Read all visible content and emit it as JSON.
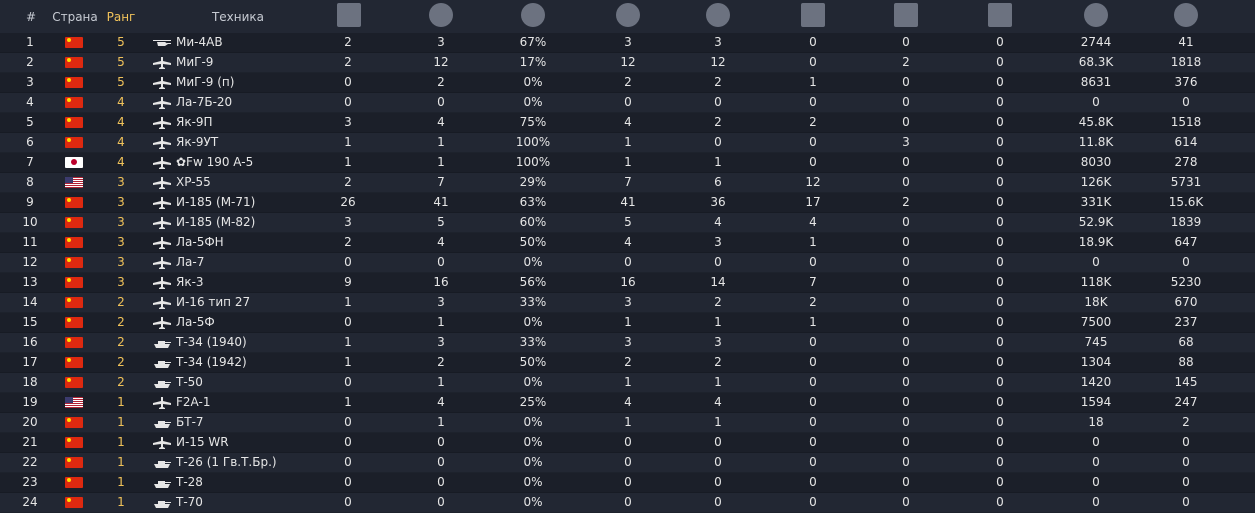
{
  "header": {
    "num": "#",
    "country": "Страна",
    "rank": "Ранг",
    "vehicle": "Техника",
    "icons": [
      "battles-icon",
      "air-kills-icon",
      "win-rate-icon",
      "flag-icon",
      "ground-kills-icon",
      "stars-icon",
      "naval-icon",
      "anchors-icon",
      "silver-lions-icon",
      "research-points-icon"
    ]
  },
  "rows": [
    {
      "num": "1",
      "flag": "china",
      "rank": "5",
      "type": "heli",
      "name": "Ми-4АВ",
      "c1": "2",
      "c2": "3",
      "c3": "67%",
      "c4": "3",
      "c5": "3",
      "c6": "0",
      "c7": "0",
      "c8": "0",
      "c9": "2744",
      "c10": "41"
    },
    {
      "num": "2",
      "flag": "china",
      "rank": "5",
      "type": "plane",
      "name": "МиГ-9",
      "c1": "2",
      "c2": "12",
      "c3": "17%",
      "c4": "12",
      "c5": "12",
      "c6": "0",
      "c7": "2",
      "c8": "0",
      "c9": "68.3K",
      "c10": "1818"
    },
    {
      "num": "3",
      "flag": "china",
      "rank": "5",
      "type": "plane",
      "name": "МиГ-9 (п)",
      "c1": "0",
      "c2": "2",
      "c3": "0%",
      "c4": "2",
      "c5": "2",
      "c6": "1",
      "c7": "0",
      "c8": "0",
      "c9": "8631",
      "c10": "376"
    },
    {
      "num": "4",
      "flag": "china",
      "rank": "4",
      "type": "plane",
      "name": "Ла-7Б-20",
      "c1": "0",
      "c2": "0",
      "c3": "0%",
      "c4": "0",
      "c5": "0",
      "c6": "0",
      "c7": "0",
      "c8": "0",
      "c9": "0",
      "c10": "0"
    },
    {
      "num": "5",
      "flag": "china",
      "rank": "4",
      "type": "plane",
      "name": "Як-9П",
      "c1": "3",
      "c2": "4",
      "c3": "75%",
      "c4": "4",
      "c5": "2",
      "c6": "2",
      "c7": "0",
      "c8": "0",
      "c9": "45.8K",
      "c10": "1518"
    },
    {
      "num": "6",
      "flag": "china",
      "rank": "4",
      "type": "plane",
      "name": "Як-9УТ",
      "c1": "1",
      "c2": "1",
      "c3": "100%",
      "c4": "1",
      "c5": "0",
      "c6": "0",
      "c7": "3",
      "c8": "0",
      "c9": "11.8K",
      "c10": "614"
    },
    {
      "num": "7",
      "flag": "japan",
      "rank": "4",
      "type": "plane",
      "name": "✿Fw 190 A-5",
      "c1": "1",
      "c2": "1",
      "c3": "100%",
      "c4": "1",
      "c5": "1",
      "c6": "0",
      "c7": "0",
      "c8": "0",
      "c9": "8030",
      "c10": "278"
    },
    {
      "num": "8",
      "flag": "usa",
      "rank": "3",
      "type": "plane",
      "name": "XP-55",
      "c1": "2",
      "c2": "7",
      "c3": "29%",
      "c4": "7",
      "c5": "6",
      "c6": "12",
      "c7": "0",
      "c8": "0",
      "c9": "126K",
      "c10": "5731"
    },
    {
      "num": "9",
      "flag": "china",
      "rank": "3",
      "type": "plane",
      "name": "И-185 (М-71)",
      "c1": "26",
      "c2": "41",
      "c3": "63%",
      "c4": "41",
      "c5": "36",
      "c6": "17",
      "c7": "2",
      "c8": "0",
      "c9": "331K",
      "c10": "15.6K"
    },
    {
      "num": "10",
      "flag": "china",
      "rank": "3",
      "type": "plane",
      "name": "И-185 (М-82)",
      "c1": "3",
      "c2": "5",
      "c3": "60%",
      "c4": "5",
      "c5": "4",
      "c6": "4",
      "c7": "0",
      "c8": "0",
      "c9": "52.9K",
      "c10": "1839"
    },
    {
      "num": "11",
      "flag": "china",
      "rank": "3",
      "type": "plane",
      "name": "Ла-5ФН",
      "c1": "2",
      "c2": "4",
      "c3": "50%",
      "c4": "4",
      "c5": "3",
      "c6": "1",
      "c7": "0",
      "c8": "0",
      "c9": "18.9K",
      "c10": "647"
    },
    {
      "num": "12",
      "flag": "china",
      "rank": "3",
      "type": "plane",
      "name": "Ла-7",
      "c1": "0",
      "c2": "0",
      "c3": "0%",
      "c4": "0",
      "c5": "0",
      "c6": "0",
      "c7": "0",
      "c8": "0",
      "c9": "0",
      "c10": "0"
    },
    {
      "num": "13",
      "flag": "china",
      "rank": "3",
      "type": "plane",
      "name": "Як-3",
      "c1": "9",
      "c2": "16",
      "c3": "56%",
      "c4": "16",
      "c5": "14",
      "c6": "7",
      "c7": "0",
      "c8": "0",
      "c9": "118K",
      "c10": "5230"
    },
    {
      "num": "14",
      "flag": "china",
      "rank": "2",
      "type": "plane",
      "name": "И-16 тип 27",
      "c1": "1",
      "c2": "3",
      "c3": "33%",
      "c4": "3",
      "c5": "2",
      "c6": "2",
      "c7": "0",
      "c8": "0",
      "c9": "18K",
      "c10": "670"
    },
    {
      "num": "15",
      "flag": "china",
      "rank": "2",
      "type": "plane",
      "name": "Ла-5Ф",
      "c1": "0",
      "c2": "1",
      "c3": "0%",
      "c4": "1",
      "c5": "1",
      "c6": "1",
      "c7": "0",
      "c8": "0",
      "c9": "7500",
      "c10": "237"
    },
    {
      "num": "16",
      "flag": "china",
      "rank": "2",
      "type": "tank",
      "name": "Т-34 (1940)",
      "c1": "1",
      "c2": "3",
      "c3": "33%",
      "c4": "3",
      "c5": "3",
      "c6": "0",
      "c7": "0",
      "c8": "0",
      "c9": "745",
      "c10": "68"
    },
    {
      "num": "17",
      "flag": "china",
      "rank": "2",
      "type": "tank",
      "name": "Т-34 (1942)",
      "c1": "1",
      "c2": "2",
      "c3": "50%",
      "c4": "2",
      "c5": "2",
      "c6": "0",
      "c7": "0",
      "c8": "0",
      "c9": "1304",
      "c10": "88"
    },
    {
      "num": "18",
      "flag": "china",
      "rank": "2",
      "type": "tank",
      "name": "Т-50",
      "c1": "0",
      "c2": "1",
      "c3": "0%",
      "c4": "1",
      "c5": "1",
      "c6": "0",
      "c7": "0",
      "c8": "0",
      "c9": "1420",
      "c10": "145"
    },
    {
      "num": "19",
      "flag": "usa",
      "rank": "1",
      "type": "plane",
      "name": "F2A-1",
      "c1": "1",
      "c2": "4",
      "c3": "25%",
      "c4": "4",
      "c5": "4",
      "c6": "0",
      "c7": "0",
      "c8": "0",
      "c9": "1594",
      "c10": "247"
    },
    {
      "num": "20",
      "flag": "china",
      "rank": "1",
      "type": "tank",
      "name": "БТ-7",
      "c1": "0",
      "c2": "1",
      "c3": "0%",
      "c4": "1",
      "c5": "1",
      "c6": "0",
      "c7": "0",
      "c8": "0",
      "c9": "18",
      "c10": "2"
    },
    {
      "num": "21",
      "flag": "china",
      "rank": "1",
      "type": "plane",
      "name": "И-15 WR",
      "c1": "0",
      "c2": "0",
      "c3": "0%",
      "c4": "0",
      "c5": "0",
      "c6": "0",
      "c7": "0",
      "c8": "0",
      "c9": "0",
      "c10": "0"
    },
    {
      "num": "22",
      "flag": "china",
      "rank": "1",
      "type": "tank",
      "name": "Т-26 (1 Гв.Т.Бр.)",
      "c1": "0",
      "c2": "0",
      "c3": "0%",
      "c4": "0",
      "c5": "0",
      "c6": "0",
      "c7": "0",
      "c8": "0",
      "c9": "0",
      "c10": "0"
    },
    {
      "num": "23",
      "flag": "china",
      "rank": "1",
      "type": "tank",
      "name": "Т-28",
      "c1": "0",
      "c2": "0",
      "c3": "0%",
      "c4": "0",
      "c5": "0",
      "c6": "0",
      "c7": "0",
      "c8": "0",
      "c9": "0",
      "c10": "0"
    },
    {
      "num": "24",
      "flag": "china",
      "rank": "1",
      "type": "tank",
      "name": "Т-70",
      "c1": "0",
      "c2": "0",
      "c3": "0%",
      "c4": "0",
      "c5": "0",
      "c6": "0",
      "c7": "0",
      "c8": "0",
      "c9": "0",
      "c10": "0"
    }
  ]
}
